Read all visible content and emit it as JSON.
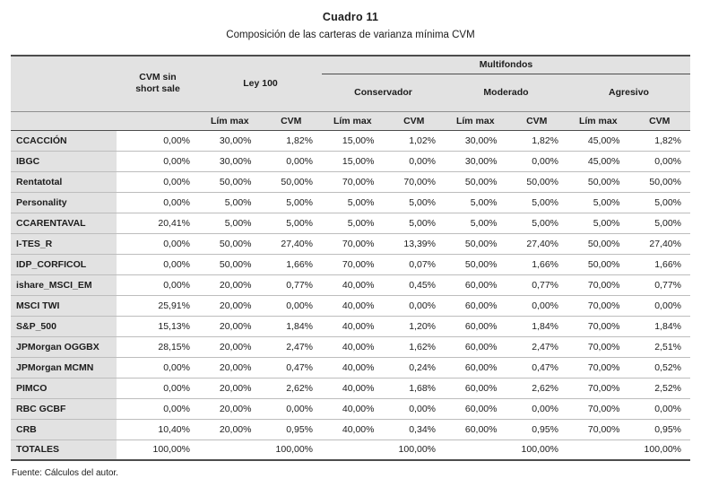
{
  "title": "Cuadro 11",
  "subtitle": "Composición de las carteras de varianza mínima CVM",
  "source_note": "Fuente: Cálculos del autor.",
  "colors": {
    "header_bg": "#e2e2e2",
    "label_bg": "#e2e2e2",
    "line_strong": "#4d4d4d",
    "line_mid": "#8f8f8f",
    "line_light": "#bdbdbd",
    "text": "#1c1c1c"
  },
  "table": {
    "headers": {
      "multifondos": "Multifondos",
      "cvm_sin_short_sale": "CVM sin short sale",
      "ley_100": "Ley 100",
      "conservador": "Conservador",
      "moderado": "Moderado",
      "agresivo": "Agresivo",
      "lim_max": "Lím max",
      "cvm": "CVM"
    },
    "rows": [
      {
        "name": "CCACCIÓN",
        "values": [
          "0,00%",
          "30,00%",
          "1,82%",
          "15,00%",
          "1,02%",
          "30,00%",
          "1,82%",
          "45,00%",
          "1,82%"
        ]
      },
      {
        "name": "IBGC",
        "values": [
          "0,00%",
          "30,00%",
          "0,00%",
          "15,00%",
          "0,00%",
          "30,00%",
          "0,00%",
          "45,00%",
          "0,00%"
        ]
      },
      {
        "name": "Rentatotal",
        "values": [
          "0,00%",
          "50,00%",
          "50,00%",
          "70,00%",
          "70,00%",
          "50,00%",
          "50,00%",
          "50,00%",
          "50,00%"
        ]
      },
      {
        "name": "Personality",
        "values": [
          "0,00%",
          "5,00%",
          "5,00%",
          "5,00%",
          "5,00%",
          "5,00%",
          "5,00%",
          "5,00%",
          "5,00%"
        ]
      },
      {
        "name": "CCARENTAVAL",
        "values": [
          "20,41%",
          "5,00%",
          "5,00%",
          "5,00%",
          "5,00%",
          "5,00%",
          "5,00%",
          "5,00%",
          "5,00%"
        ]
      },
      {
        "name": "I-TES_R",
        "values": [
          "0,00%",
          "50,00%",
          "27,40%",
          "70,00%",
          "13,39%",
          "50,00%",
          "27,40%",
          "50,00%",
          "27,40%"
        ]
      },
      {
        "name": "IDP_CORFICOL",
        "values": [
          "0,00%",
          "50,00%",
          "1,66%",
          "70,00%",
          "0,07%",
          "50,00%",
          "1,66%",
          "50,00%",
          "1,66%"
        ]
      },
      {
        "name": "ishare_MSCI_EM",
        "values": [
          "0,00%",
          "20,00%",
          "0,77%",
          "40,00%",
          "0,45%",
          "60,00%",
          "0,77%",
          "70,00%",
          "0,77%"
        ]
      },
      {
        "name": "MSCI TWI",
        "values": [
          "25,91%",
          "20,00%",
          "0,00%",
          "40,00%",
          "0,00%",
          "60,00%",
          "0,00%",
          "70,00%",
          "0,00%"
        ]
      },
      {
        "name": "S&P_500",
        "values": [
          "15,13%",
          "20,00%",
          "1,84%",
          "40,00%",
          "1,20%",
          "60,00%",
          "1,84%",
          "70,00%",
          "1,84%"
        ]
      },
      {
        "name": "JPMorgan OGGBX",
        "values": [
          "28,15%",
          "20,00%",
          "2,47%",
          "40,00%",
          "1,62%",
          "60,00%",
          "2,47%",
          "70,00%",
          "2,51%"
        ]
      },
      {
        "name": "JPMorgan MCMN",
        "values": [
          "0,00%",
          "20,00%",
          "0,47%",
          "40,00%",
          "0,24%",
          "60,00%",
          "0,47%",
          "70,00%",
          "0,52%"
        ]
      },
      {
        "name": "PIMCO",
        "values": [
          "0,00%",
          "20,00%",
          "2,62%",
          "40,00%",
          "1,68%",
          "60,00%",
          "2,62%",
          "70,00%",
          "2,52%"
        ]
      },
      {
        "name": "RBC GCBF",
        "values": [
          "0,00%",
          "20,00%",
          "0,00%",
          "40,00%",
          "0,00%",
          "60,00%",
          "0,00%",
          "70,00%",
          "0,00%"
        ]
      },
      {
        "name": "CRB",
        "values": [
          "10,40%",
          "20,00%",
          "0,95%",
          "40,00%",
          "0,34%",
          "60,00%",
          "0,95%",
          "70,00%",
          "0,95%"
        ]
      }
    ],
    "totals": {
      "name": "TOTALES",
      "values": [
        "100,00%",
        "",
        "100,00%",
        "",
        "100,00%",
        "",
        "100,00%",
        "",
        "100,00%"
      ]
    }
  }
}
